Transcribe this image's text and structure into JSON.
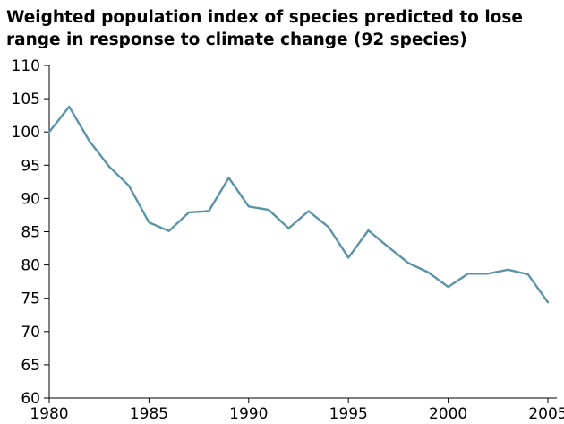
{
  "chart_data": {
    "type": "line",
    "title_lines": [
      "Weighted population index of species predicted to lose",
      "range in response to climate change (92 species)"
    ],
    "xlabel": "",
    "ylabel": "",
    "x": [
      1980,
      1981,
      1982,
      1983,
      1984,
      1985,
      1986,
      1987,
      1988,
      1989,
      1990,
      1991,
      1992,
      1993,
      1994,
      1995,
      1996,
      1997,
      1998,
      1999,
      2000,
      2001,
      2002,
      2003,
      2004,
      2005
    ],
    "series": [
      {
        "values": [
          100,
          103.8,
          98.7,
          94.8,
          91.9,
          86.4,
          85.1,
          87.9,
          88.1,
          93.1,
          88.8,
          88.3,
          85.5,
          88.1,
          85.7,
          81.1,
          85.2,
          82.7,
          80.3,
          78.9,
          76.7,
          78.7,
          78.7,
          79.3,
          78.6,
          74.4
        ]
      }
    ],
    "xlim": [
      1980,
      2005
    ],
    "ylim": [
      60,
      110
    ],
    "x_ticks": [
      1980,
      1985,
      1990,
      1995,
      2000,
      2005
    ],
    "y_ticks": [
      60,
      65,
      70,
      75,
      80,
      85,
      90,
      95,
      100,
      105,
      110
    ],
    "grid": false,
    "legend": "none",
    "line_color": "#5b94a8",
    "axis_color": "#000000"
  }
}
